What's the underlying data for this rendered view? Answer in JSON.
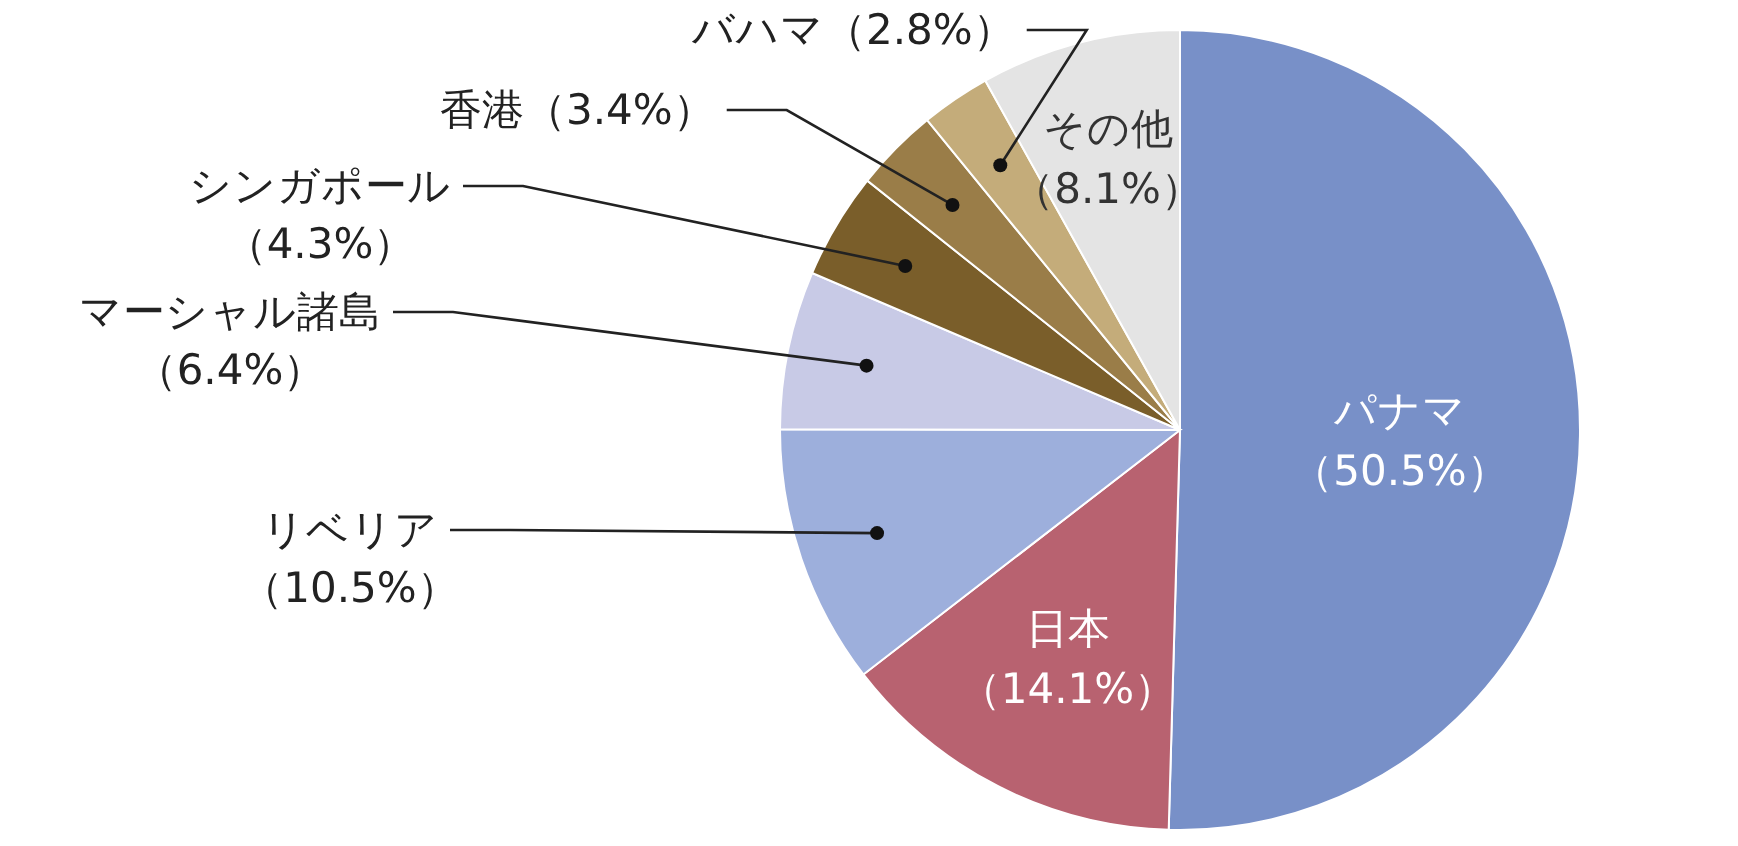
{
  "chart_data": {
    "type": "pie",
    "categories": [
      "パナマ",
      "日本",
      "リベリア",
      "マーシャル諸島",
      "シンガポール",
      "香港",
      "バハマ",
      "その他"
    ],
    "values": [
      50.5,
      14.1,
      10.5,
      6.4,
      4.3,
      3.4,
      2.8,
      8.1
    ],
    "value_labels": [
      "（50.5%）",
      "（14.1%）",
      "（10.5%）",
      "（6.4%）",
      "（4.3%）",
      "（3.4%）",
      "（2.8%）",
      "（8.1%）"
    ],
    "colors": [
      "#7890c8",
      "#b86270",
      "#9dafdc",
      "#c8cae6",
      "#7a5e2a",
      "#9a7d48",
      "#c4ac7a",
      "#e4e4e4"
    ]
  }
}
